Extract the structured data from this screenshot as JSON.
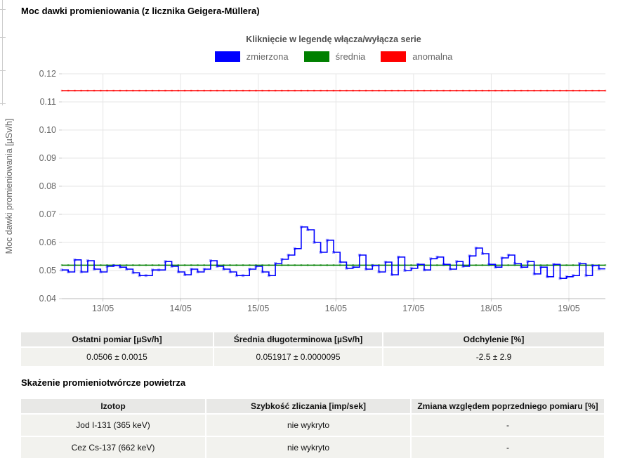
{
  "page_title": "Moc dawki promieniowania (z licznika Geigera-Müllera)",
  "chart_note": "Kliknięcie w legendę włącza/wyłącza serie",
  "chart_data": {
    "type": "line",
    "title": "Moc dawki promieniowania (z licznika Geigera-Müllera)",
    "subtitle": "Kliknięcie w legendę włącza/wyłącza serie",
    "ylabel": "Moc dawki promieniowania [µSv/h]",
    "xlabel": "",
    "ylim": [
      0.04,
      0.12
    ],
    "yticks": [
      0.04,
      0.05,
      0.06,
      0.07,
      0.08,
      0.09,
      0.1,
      0.11,
      0.12
    ],
    "x_tick_labels": [
      "13/05",
      "14/05",
      "15/05",
      "16/05",
      "17/05",
      "18/05",
      "19/05"
    ],
    "x_start_offset_days": 0.53,
    "x_span_days": 7.0,
    "grid": true,
    "legend_position": "top-center",
    "series": [
      {
        "name": "zmierzona",
        "color": "#0000ff",
        "style": "step-with-points",
        "values": [
          0.0502,
          0.0495,
          0.0538,
          0.0495,
          0.0535,
          0.0505,
          0.0495,
          0.0515,
          0.0518,
          0.0512,
          0.0505,
          0.0492,
          0.0482,
          0.0482,
          0.0502,
          0.0502,
          0.0532,
          0.0515,
          0.0495,
          0.0485,
          0.0505,
          0.0495,
          0.0505,
          0.0535,
          0.0515,
          0.0505,
          0.0495,
          0.0482,
          0.0482,
          0.0505,
          0.0515,
          0.0495,
          0.0482,
          0.0525,
          0.054,
          0.0555,
          0.0578,
          0.0655,
          0.0645,
          0.06,
          0.0565,
          0.0608,
          0.0565,
          0.053,
          0.0508,
          0.0512,
          0.0555,
          0.0505,
          0.0518,
          0.0495,
          0.053,
          0.0485,
          0.0548,
          0.05,
          0.0508,
          0.0522,
          0.0502,
          0.0542,
          0.0548,
          0.0522,
          0.0505,
          0.0532,
          0.0515,
          0.0552,
          0.058,
          0.056,
          0.0522,
          0.0512,
          0.0545,
          0.0555,
          0.0525,
          0.0512,
          0.0532,
          0.0488,
          0.0512,
          0.0478,
          0.0522,
          0.0472,
          0.0478,
          0.0482,
          0.0525,
          0.0482,
          0.0518,
          0.0506
        ]
      },
      {
        "name": "średnia",
        "color": "#008000",
        "style": "hline",
        "value": 0.051917
      },
      {
        "name": "anomalna",
        "color": "#ff0000",
        "style": "hline",
        "value": 0.114
      }
    ]
  },
  "summary_table": {
    "headers": [
      "Ostatni pomiar [µSv/h]",
      "Średnia długoterminowa [µSv/h]",
      "Odchylenie [%]"
    ],
    "values": [
      "0.0506 ± 0.0015",
      "0.051917 ± 0.0000095",
      "-2.5 ± 2.9"
    ]
  },
  "section2_title": "Skażenie promieniotwórcze powietrza",
  "contamination_table": {
    "headers": [
      "Izotop",
      "Szybkość zliczania [imp/sek]",
      "Zmiana względem poprzedniego pomiaru [%]"
    ],
    "rows": [
      [
        "Jod I-131 (365 keV)",
        "nie wykryto",
        "-"
      ],
      [
        "Cez Cs-137 (662 keV)",
        "nie wykryto",
        "-"
      ]
    ]
  }
}
